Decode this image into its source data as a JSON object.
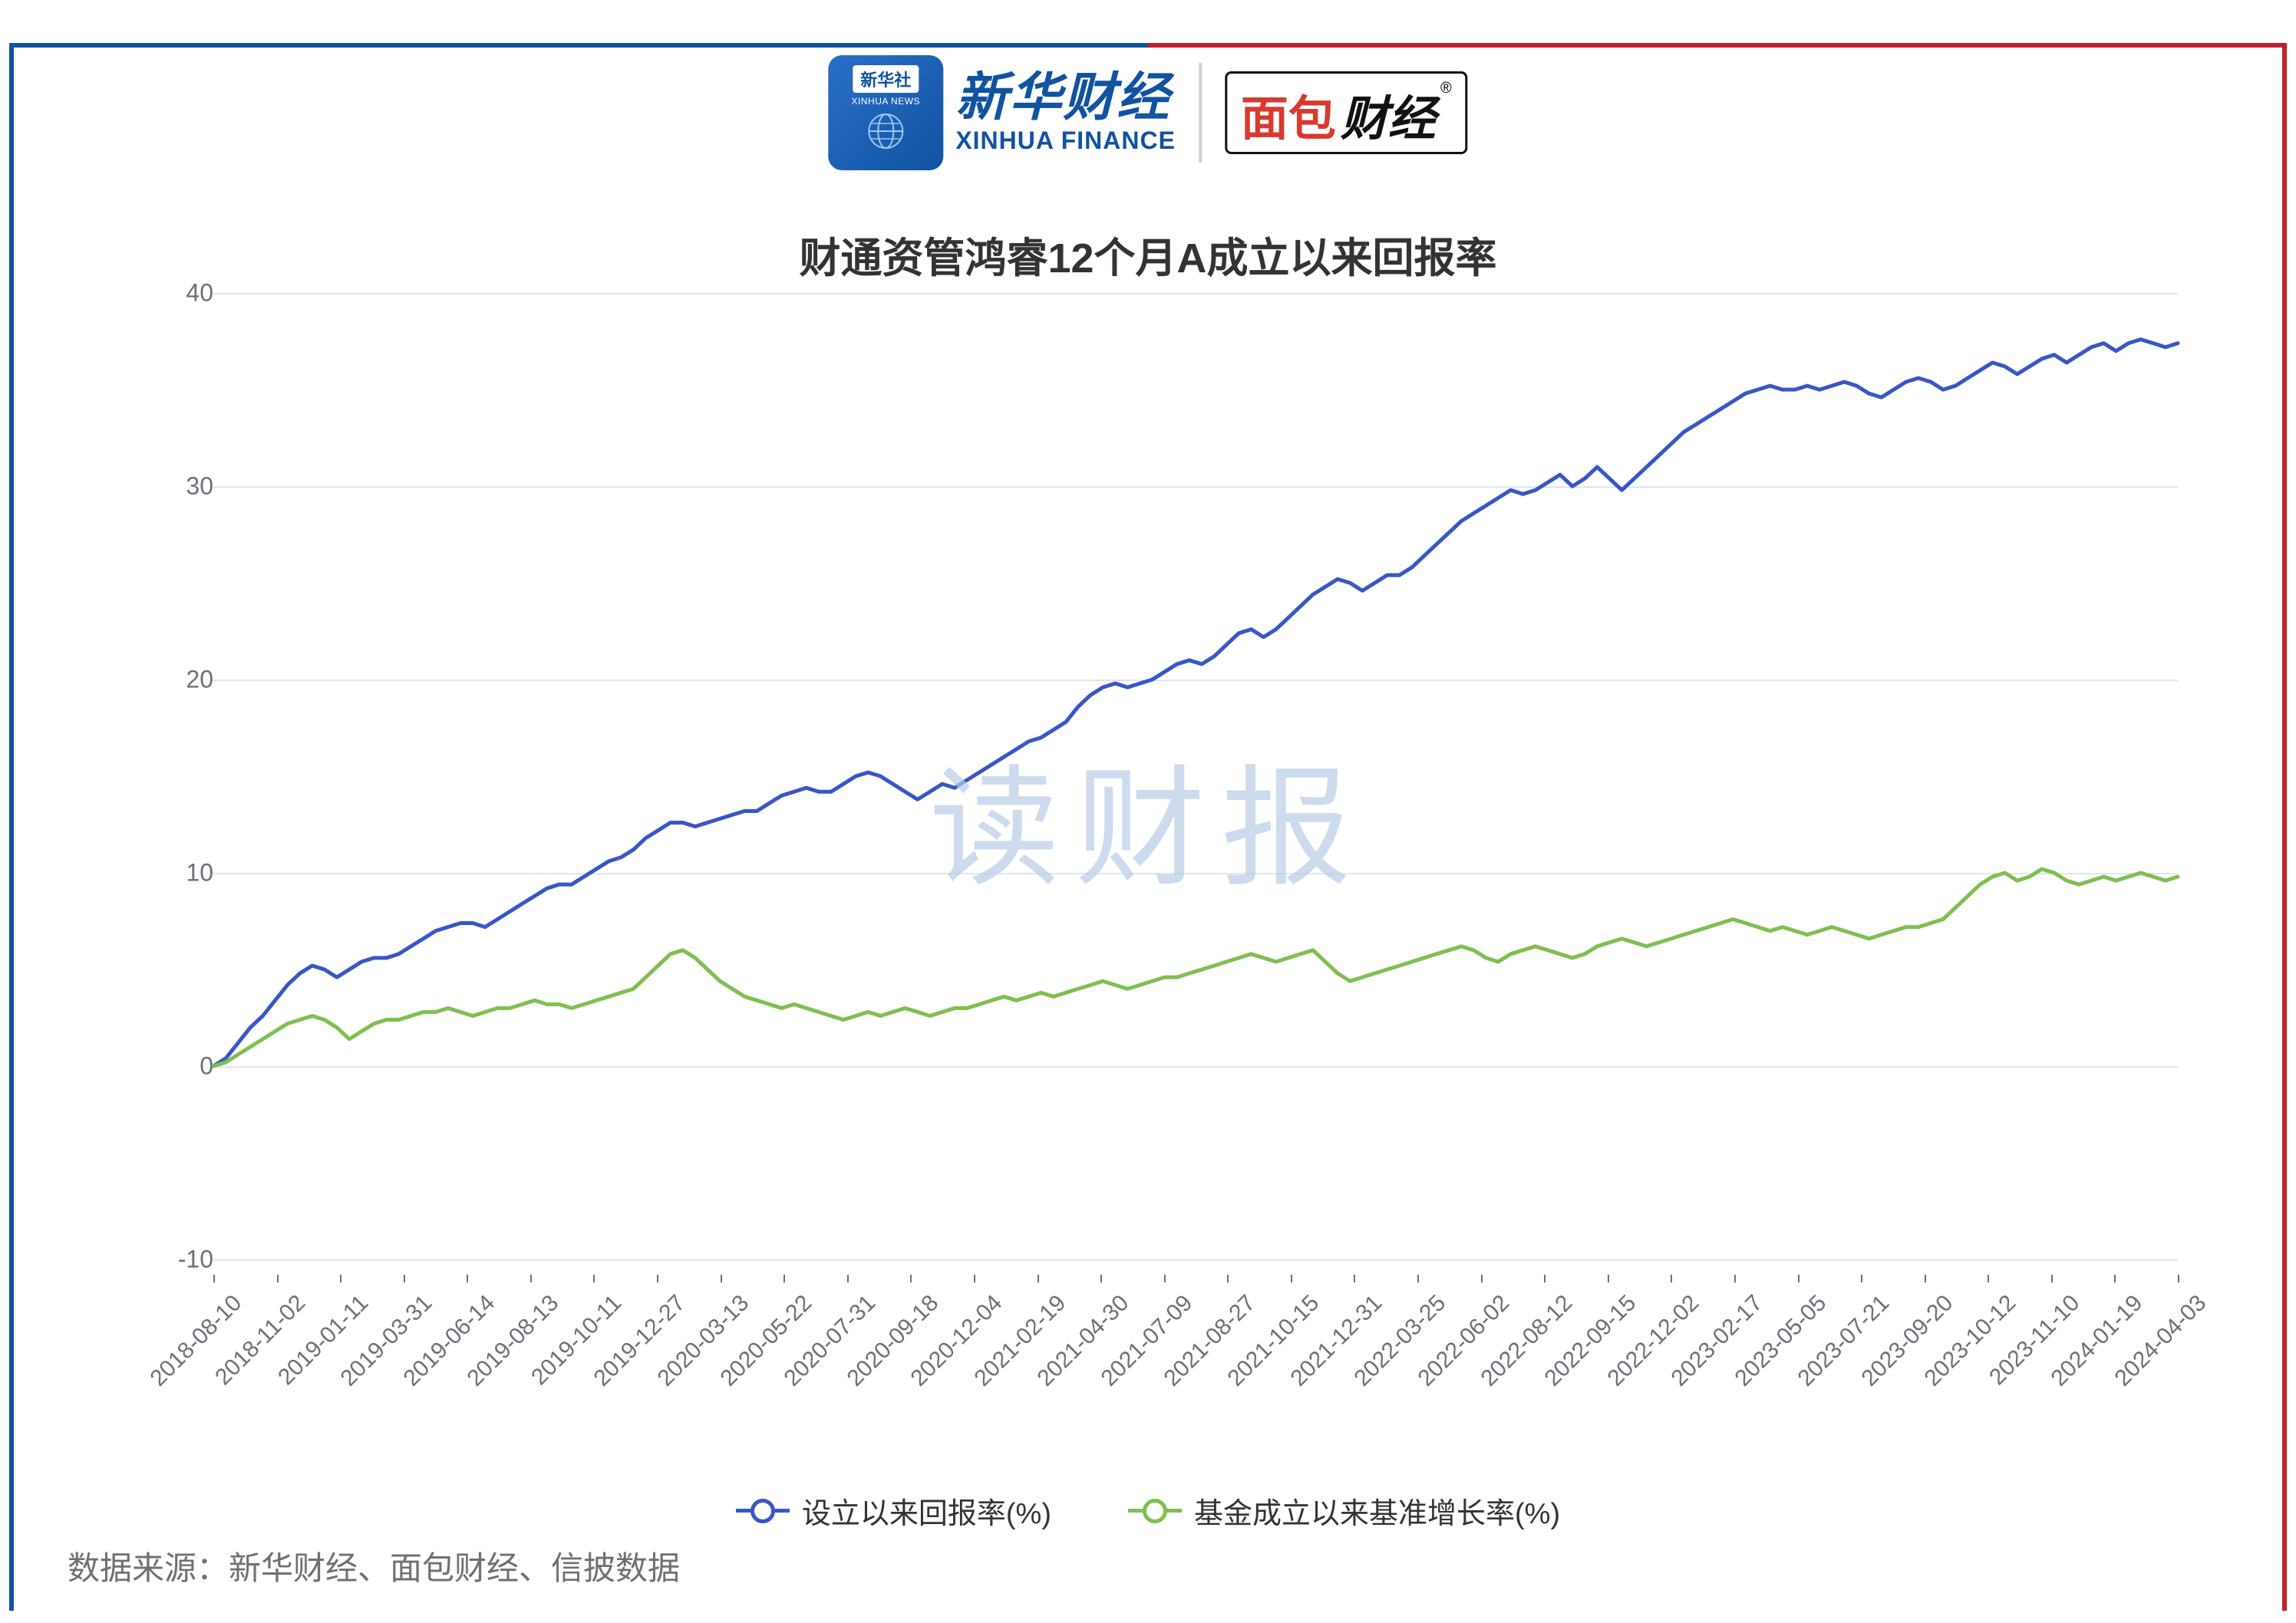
{
  "header": {
    "xinhuashe_cn": "新华社",
    "xinhuashe_en": "XINHUA NEWS",
    "xinhua_fin_cn": "新华财经",
    "xinhua_fin_en": "XINHUA FINANCE",
    "mbcj_1": "面包",
    "mbcj_2": "财经"
  },
  "chart": {
    "type": "line",
    "title": "财通资管鸿睿12个月A成立以来回报率",
    "watermark": "读财报",
    "background_color": "#ffffff",
    "grid_color": "#e0e6ec",
    "axis_label_color": "#6e7079",
    "title_fontsize": 54,
    "axis_fontsize": 32,
    "y_axis": {
      "min": -10,
      "max": 40,
      "step": 10,
      "ticks": [
        -10,
        0,
        10,
        20,
        30,
        40
      ]
    },
    "x_labels": [
      "2018-08-10",
      "2018-11-02",
      "2019-01-11",
      "2019-03-31",
      "2019-06-14",
      "2019-08-13",
      "2019-10-11",
      "2019-12-27",
      "2020-03-13",
      "2020-05-22",
      "2020-07-31",
      "2020-09-18",
      "2020-12-04",
      "2021-02-19",
      "2021-04-30",
      "2021-07-09",
      "2021-08-27",
      "2021-10-15",
      "2021-12-31",
      "2022-03-25",
      "2022-06-02",
      "2022-08-12",
      "2022-09-15",
      "2022-12-02",
      "2023-02-17",
      "2023-05-05",
      "2023-07-21",
      "2023-09-20",
      "2023-10-12",
      "2023-11-10",
      "2024-01-19",
      "2024-04-03"
    ],
    "series": [
      {
        "name": "设立以来回报率(%)",
        "color": "#3857c6",
        "line_width": 5,
        "data": [
          0,
          0.4,
          1.2,
          2,
          2.6,
          3.4,
          4.2,
          4.8,
          5.2,
          5,
          4.6,
          5,
          5.4,
          5.6,
          5.6,
          5.8,
          6.2,
          6.6,
          7,
          7.2,
          7.4,
          7.4,
          7.2,
          7.6,
          8,
          8.4,
          8.8,
          9.2,
          9.4,
          9.4,
          9.8,
          10.2,
          10.6,
          10.8,
          11.2,
          11.8,
          12.2,
          12.6,
          12.6,
          12.4,
          12.6,
          12.8,
          13,
          13.2,
          13.2,
          13.6,
          14,
          14.2,
          14.4,
          14.2,
          14.2,
          14.6,
          15,
          15.2,
          15,
          14.6,
          14.2,
          13.8,
          14.2,
          14.6,
          14.4,
          14.8,
          15.2,
          15.6,
          16,
          16.4,
          16.8,
          17,
          17.4,
          17.8,
          18.6,
          19.2,
          19.6,
          19.8,
          19.6,
          19.8,
          20,
          20.4,
          20.8,
          21,
          20.8,
          21.2,
          21.8,
          22.4,
          22.6,
          22.2,
          22.6,
          23.2,
          23.8,
          24.4,
          24.8,
          25.2,
          25,
          24.6,
          25,
          25.4,
          25.4,
          25.8,
          26.4,
          27,
          27.6,
          28.2,
          28.6,
          29,
          29.4,
          29.8,
          29.6,
          29.8,
          30.2,
          30.6,
          30,
          30.4,
          31,
          30.4,
          29.8,
          30.4,
          31,
          31.6,
          32.2,
          32.8,
          33.2,
          33.6,
          34,
          34.4,
          34.8,
          35,
          35.2,
          35,
          35,
          35.2,
          35,
          35.2,
          35.4,
          35.2,
          34.8,
          34.6,
          35,
          35.4,
          35.6,
          35.4,
          35,
          35.2,
          35.6,
          36,
          36.4,
          36.2,
          35.8,
          36.2,
          36.6,
          36.8,
          36.4,
          36.8,
          37.2,
          37.4,
          37,
          37.4,
          37.6,
          37.4,
          37.2,
          37.4
        ]
      },
      {
        "name": "基金成立以来基准增长率(%)",
        "color": "#7fc051",
        "line_width": 5,
        "data": [
          0,
          0.2,
          0.6,
          1,
          1.4,
          1.8,
          2.2,
          2.4,
          2.6,
          2.4,
          2,
          1.4,
          1.8,
          2.2,
          2.4,
          2.4,
          2.6,
          2.8,
          2.8,
          3,
          2.8,
          2.6,
          2.8,
          3,
          3,
          3.2,
          3.4,
          3.2,
          3.2,
          3,
          3.2,
          3.4,
          3.6,
          3.8,
          4,
          4.6,
          5.2,
          5.8,
          6,
          5.6,
          5,
          4.4,
          4,
          3.6,
          3.4,
          3.2,
          3,
          3.2,
          3,
          2.8,
          2.6,
          2.4,
          2.6,
          2.8,
          2.6,
          2.8,
          3,
          2.8,
          2.6,
          2.8,
          3,
          3,
          3.2,
          3.4,
          3.6,
          3.4,
          3.6,
          3.8,
          3.6,
          3.8,
          4,
          4.2,
          4.4,
          4.2,
          4,
          4.2,
          4.4,
          4.6,
          4.6,
          4.8,
          5,
          5.2,
          5.4,
          5.6,
          5.8,
          5.6,
          5.4,
          5.6,
          5.8,
          6,
          5.4,
          4.8,
          4.4,
          4.6,
          4.8,
          5,
          5.2,
          5.4,
          5.6,
          5.8,
          6,
          6.2,
          6,
          5.6,
          5.4,
          5.8,
          6,
          6.2,
          6,
          5.8,
          5.6,
          5.8,
          6.2,
          6.4,
          6.6,
          6.4,
          6.2,
          6.4,
          6.6,
          6.8,
          7,
          7.2,
          7.4,
          7.6,
          7.4,
          7.2,
          7,
          7.2,
          7,
          6.8,
          7,
          7.2,
          7,
          6.8,
          6.6,
          6.8,
          7,
          7.2,
          7.2,
          7.4,
          7.6,
          8.2,
          8.8,
          9.4,
          9.8,
          10,
          9.6,
          9.8,
          10.2,
          10,
          9.6,
          9.4,
          9.6,
          9.8,
          9.6,
          9.8,
          10,
          9.8,
          9.6,
          9.8
        ]
      }
    ]
  },
  "legend": [
    {
      "label": "设立以来回报率(%)",
      "color": "#3857c6"
    },
    {
      "label": "基金成立以来基准增长率(%)",
      "color": "#7fc051"
    }
  ],
  "source_note": "数据来源：新华财经、面包财经、信披数据"
}
